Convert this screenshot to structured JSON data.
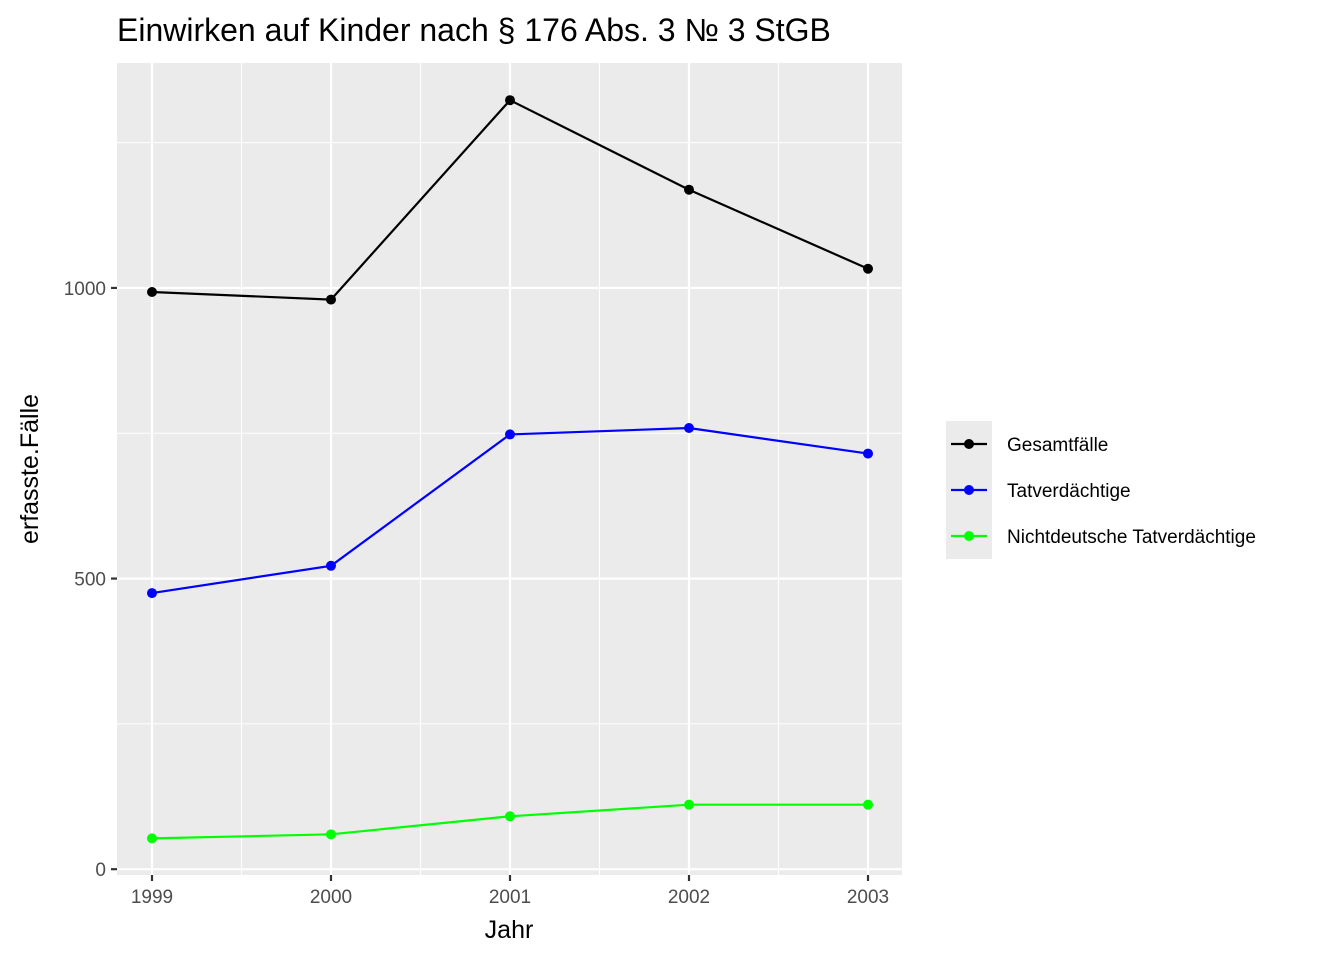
{
  "chart_data": {
    "type": "line",
    "title": "Einwirken auf Kinder nach § 176 Abs. 3 № 3 StGB",
    "xlabel": "Jahr",
    "ylabel": "erfasste.Fälle",
    "x": [
      "1999",
      "2000",
      "2001",
      "2002",
      "2003"
    ],
    "y_ticks": [
      "0",
      "500",
      "1000"
    ],
    "ylim": [
      -10,
      1387
    ],
    "grid": true,
    "legend_position": "right",
    "series": [
      {
        "name": "Gesamtfälle",
        "color": "#000000",
        "values": [
          993,
          980,
          1323,
          1169,
          1033
        ]
      },
      {
        "name": "Tatverdächtige",
        "color": "#0000ff",
        "values": [
          475,
          522,
          748,
          759,
          715
        ]
      },
      {
        "name": "Nichtdeutsche Tatverdächtige",
        "color": "#00ff00",
        "values": [
          53,
          60,
          91,
          111,
          111
        ]
      }
    ]
  }
}
